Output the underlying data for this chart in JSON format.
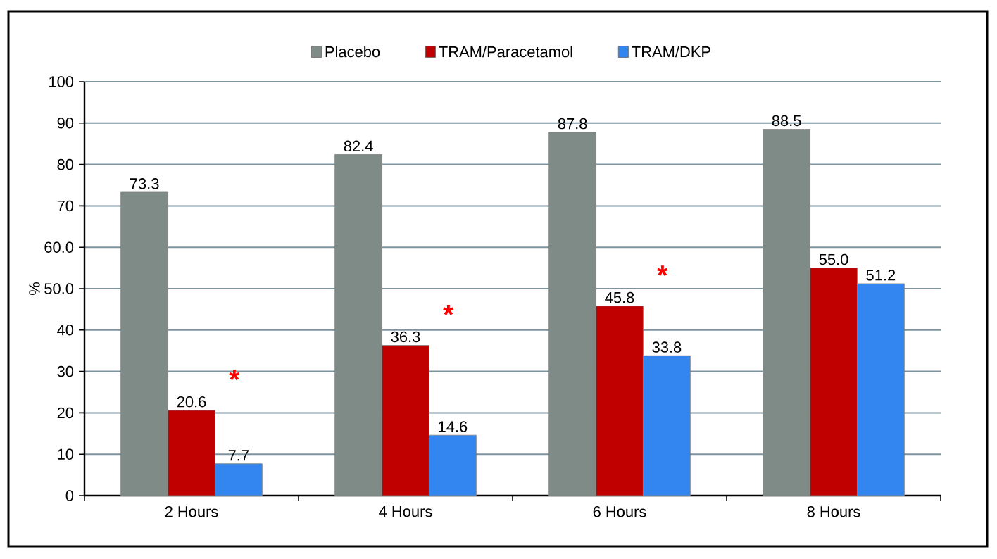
{
  "chart_data": {
    "type": "bar",
    "ylabel": "%",
    "categories": [
      "2 Hours",
      "4 Hours",
      "6 Hours",
      "8 Hours"
    ],
    "series": [
      {
        "name": "Placebo",
        "color": "#7f8b87",
        "values": [
          73.3,
          82.4,
          87.8,
          88.5
        ],
        "value_labels": [
          "73.3",
          "82.4",
          "87.8",
          "88.5"
        ]
      },
      {
        "name": "TRAM/Paracetamol",
        "color": "#c00000",
        "values": [
          20.6,
          36.3,
          45.8,
          55.0
        ],
        "value_labels": [
          "20.6",
          "36.3",
          "45.8",
          "55.0"
        ]
      },
      {
        "name": "TRAM/DKP",
        "color": "#3385ef",
        "values": [
          7.7,
          14.6,
          33.8,
          51.2
        ],
        "value_labels": [
          "7.7",
          "14.6",
          "33.8",
          "51.2"
        ]
      }
    ],
    "ylim": [
      0,
      100
    ],
    "yticks": [
      0,
      10,
      20,
      30,
      40,
      {
        "value": 50,
        "label": "50.0"
      },
      {
        "value": 60,
        "label": "60.0"
      },
      70,
      80,
      90,
      100
    ],
    "grid": "y",
    "legend": "top",
    "annotations": [
      "*",
      "*",
      "*"
    ]
  }
}
